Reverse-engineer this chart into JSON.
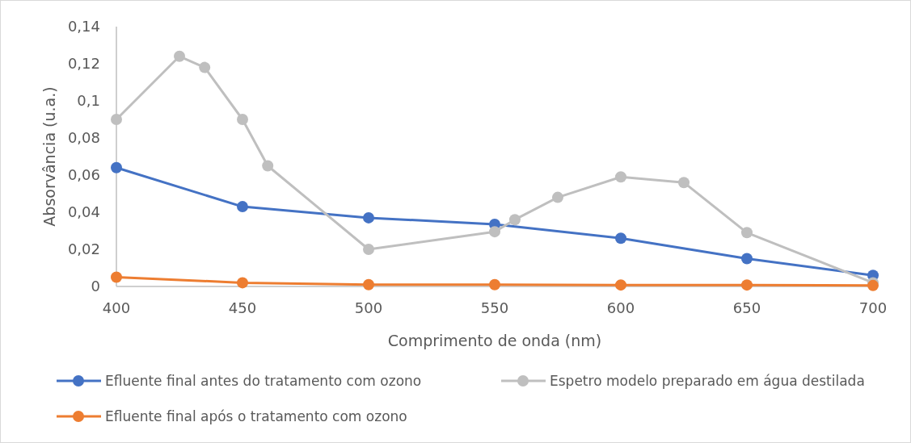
{
  "chart_data": {
    "type": "line",
    "xlabel": "Comprimento de onda (nm)",
    "ylabel": "Absorvância (u.a.)",
    "xlim": [
      400,
      700
    ],
    "xticks": [
      400,
      450,
      500,
      550,
      600,
      650,
      700
    ],
    "ylim": [
      0,
      0.14
    ],
    "yticks": [
      0,
      {
        "value": 0.02,
        "label": "0,02"
      },
      {
        "value": 0.04,
        "label": "0,04"
      },
      {
        "value": 0.06,
        "label": "0,06"
      },
      {
        "value": 0.08,
        "label": "0,08"
      },
      {
        "value": 0.1,
        "label": "0,1"
      },
      {
        "value": 0.12,
        "label": "0,12"
      },
      {
        "value": 0.14,
        "label": "0,14"
      }
    ],
    "grid": false,
    "legend": "bottom",
    "marker": "circle",
    "line_style": "solid",
    "series": [
      {
        "name": "Efluente final antes do tratamento com ozono",
        "color": "#4472c4",
        "x": [
          400,
          450,
          500,
          550,
          600,
          650,
          700
        ],
        "values": [
          0.064,
          0.043,
          0.037,
          0.0335,
          0.026,
          0.015,
          0.006
        ]
      },
      {
        "name": "Espetro modelo preparado em água destilada",
        "color": "#bfbfbf",
        "x": [
          400,
          425,
          435,
          450,
          460,
          500,
          550,
          558,
          575,
          600,
          625,
          650,
          700
        ],
        "values": [
          0.09,
          0.124,
          0.118,
          0.09,
          0.065,
          0.02,
          0.0295,
          0.036,
          0.048,
          0.059,
          0.056,
          0.029,
          0.002
        ]
      },
      {
        "name": "Efluente final após o tratamento com ozono",
        "color": "#ed7d31",
        "x": [
          400,
          450,
          500,
          550,
          600,
          650,
          700
        ],
        "values": [
          0.005,
          0.002,
          0.001,
          0.001,
          0.0008,
          0.0008,
          0.0005
        ]
      }
    ]
  }
}
